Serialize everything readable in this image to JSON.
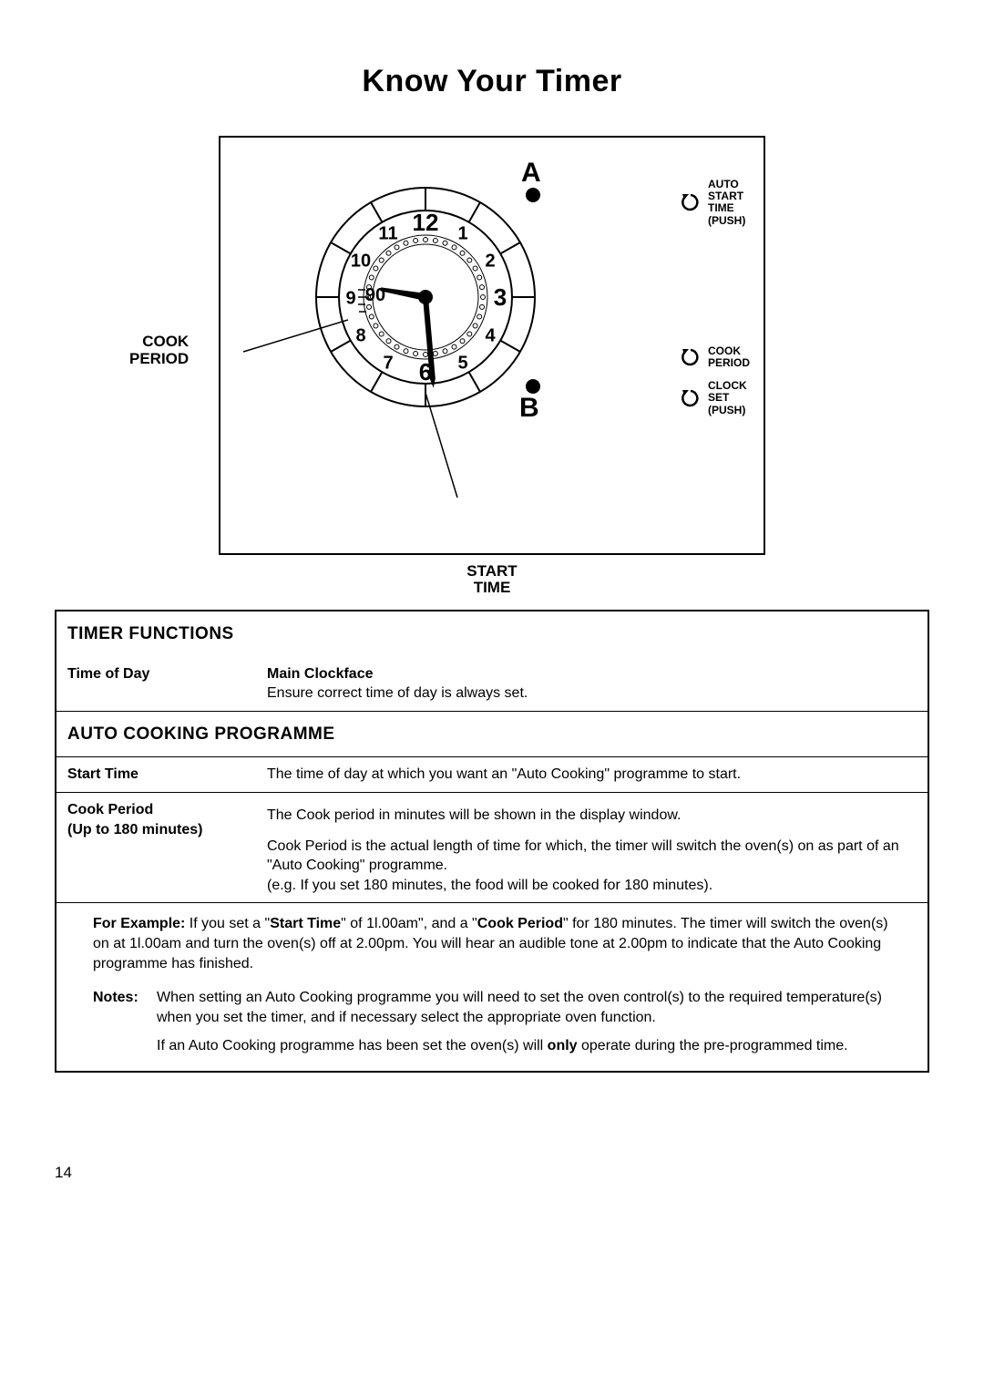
{
  "page": {
    "title": "Know Your Timer",
    "page_number": "14"
  },
  "diagram": {
    "left_label_line1": "COOK",
    "left_label_line2": "PERIOD",
    "bottom_label_line1": "START",
    "bottom_label_line2": "TIME",
    "letter_a": "A",
    "letter_b": "B",
    "knobs": [
      {
        "lines": [
          "AUTO",
          "START",
          "TIME",
          "(PUSH)"
        ]
      },
      {
        "lines": [
          "COOK",
          "PERIOD"
        ]
      },
      {
        "lines": [
          "CLOCK",
          "SET",
          "(PUSH)"
        ]
      }
    ],
    "clock": {
      "numbers": [
        "12",
        "1",
        "2",
        "3",
        "4",
        "5",
        "6",
        "7",
        "8",
        "9",
        "10",
        "11"
      ],
      "inner_label": "90"
    }
  },
  "sections": {
    "timer_functions": {
      "header": "TIMER FUNCTIONS",
      "rows": [
        {
          "label": "Time of Day",
          "body_bold": "Main Clockface",
          "body": "Ensure correct time of day is always set."
        }
      ]
    },
    "auto_cooking": {
      "header": "AUTO COOKING PROGRAMME",
      "rows": [
        {
          "label": "Start Time",
          "body": "The time of day at which you want an \"Auto Cooking\" programme to start."
        },
        {
          "label": "Cook Period",
          "label2": "(Up to 180 minutes)",
          "body": "The Cook period in minutes will be shown in the display window.",
          "body2": "Cook Period is the actual length of time for which, the timer will switch the oven(s) on as part of an \"Auto Cooking\" programme.\n(e.g. If you set 180 minutes, the food will be cooked for 180 minutes)."
        }
      ],
      "example": {
        "prefix": "For Example:",
        "text1a": " If you set a \"",
        "bold1": "Start Time",
        "text1b": "\" of 1l.00am\", and a \"",
        "bold2": "Cook Period",
        "text1c": "\" for 180 minutes. The timer will switch the oven(s) on at 1l.00am and turn the oven(s) off at 2.00pm. You will hear an audible tone at 2.00pm to indicate that the Auto Cooking programme has finished."
      },
      "notes": {
        "label": "Notes:",
        "text1": "When setting an Auto Cooking programme you will need to set the oven control(s) to the required temperature(s) when you set the timer, and if necessary select the appropriate oven function.",
        "text2a": "If an Auto Cooking programme has been set the oven(s) will ",
        "bold": "only",
        "text2b": " operate during the pre-programmed time."
      }
    }
  }
}
